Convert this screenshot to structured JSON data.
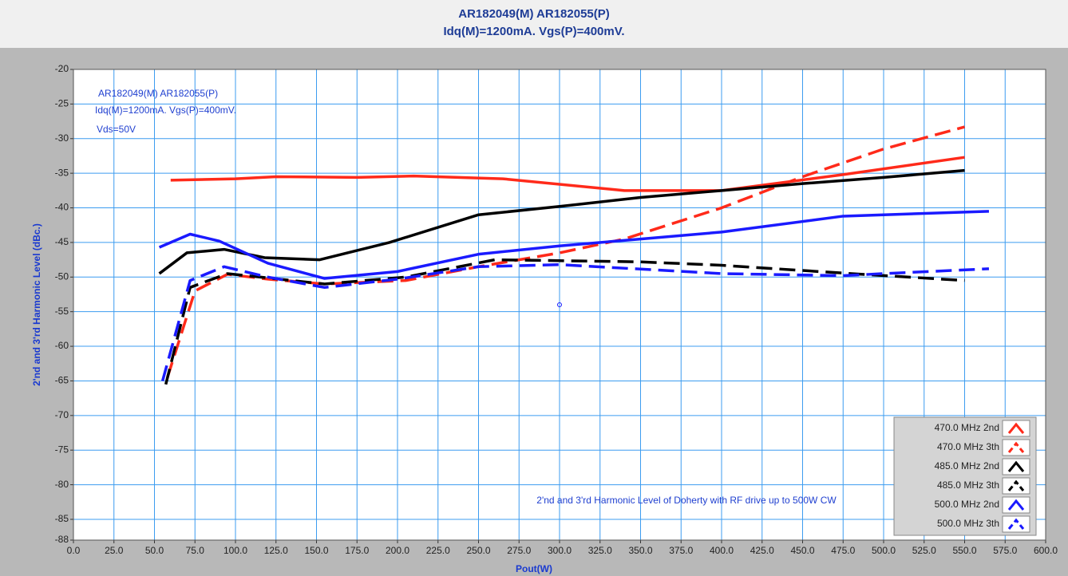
{
  "chart_data": {
    "type": "line",
    "title": [
      "AR182049(M) AR182055(P)",
      "Idq(M)=1200mA. Vgs(P)=400mV."
    ],
    "x_label": "Pout(W)",
    "y_label": "2'nd and 3'rd Harmonic Level (dBc.)",
    "annotations": [
      "AR182049(M) AR182055(P)",
      "Idq(M)=1200mA. Vgs(P)=400mV.",
      "Vds=50V",
      "2'nd and 3'rd Harmonic Level of Doherty with RF drive up to 500W CW"
    ],
    "cursor": {
      "x": 300,
      "y": -54
    },
    "xlim": [
      0,
      600
    ],
    "ylim": [
      -88,
      -20
    ],
    "xticks": [
      {
        "value": 0,
        "label": "0.0"
      },
      {
        "value": 25,
        "label": "25.0"
      },
      {
        "value": 50,
        "label": "50.0"
      },
      {
        "value": 75,
        "label": "75.0"
      },
      {
        "value": 100,
        "label": "100.0"
      },
      {
        "value": 125,
        "label": "125.0"
      },
      {
        "value": 150,
        "label": "150.0"
      },
      {
        "value": 175,
        "label": "175.0"
      },
      {
        "value": 200,
        "label": "200.0"
      },
      {
        "value": 225,
        "label": "225.0"
      },
      {
        "value": 250,
        "label": "250.0"
      },
      {
        "value": 275,
        "label": "275.0"
      },
      {
        "value": 300,
        "label": "300.0"
      },
      {
        "value": 325,
        "label": "325.0"
      },
      {
        "value": 350,
        "label": "350.0"
      },
      {
        "value": 375,
        "label": "375.0"
      },
      {
        "value": 400,
        "label": "400.0"
      },
      {
        "value": 425,
        "label": "425.0"
      },
      {
        "value": 450,
        "label": "450.0"
      },
      {
        "value": 475,
        "label": "475.0"
      },
      {
        "value": 500,
        "label": "500.0"
      },
      {
        "value": 525,
        "label": "525.0"
      },
      {
        "value": 550,
        "label": "550.0"
      },
      {
        "value": 575,
        "label": "575.0"
      },
      {
        "value": 600,
        "label": "600.0"
      }
    ],
    "yticks": [
      -20,
      -25,
      -30,
      -35,
      -40,
      -45,
      -50,
      -55,
      -60,
      -65,
      -70,
      -75,
      -80,
      -85,
      -88
    ],
    "grid": true,
    "legend": "bottom-right",
    "series": [
      {
        "name": "470.0 MHz 2nd",
        "color": "#ff2a1a",
        "dashed": false,
        "x": [
          60,
          100,
          125,
          175,
          210,
          265,
          340,
          400,
          475,
          550
        ],
        "values": [
          -36,
          -35.8,
          -35.5,
          -35.6,
          -35.4,
          -35.8,
          -37.5,
          -37.5,
          -35.2,
          -32.7
        ]
      },
      {
        "name": "470.0 MHz 3th",
        "color": "#ff2a1a",
        "dashed": true,
        "x": [
          58,
          75,
          95,
          120,
          155,
          205,
          250,
          300,
          340,
          400,
          450,
          500,
          550
        ],
        "values": [
          -64.5,
          -52,
          -49.6,
          -50.3,
          -51,
          -50.5,
          -48.5,
          -46.5,
          -44.5,
          -40,
          -35.5,
          -31.5,
          -28.3
        ]
      },
      {
        "name": "485.0 MHz 2nd",
        "color": "#000000",
        "dashed": false,
        "x": [
          53,
          70,
          93,
          118,
          152,
          195,
          250,
          300,
          350,
          400,
          450,
          500,
          550
        ],
        "values": [
          -49.5,
          -46.5,
          -46,
          -47.2,
          -47.5,
          -45,
          -41,
          -39.8,
          -38.5,
          -37.5,
          -36.5,
          -35.6,
          -34.6
        ]
      },
      {
        "name": "485.0 MHz 3th",
        "color": "#000000",
        "dashed": true,
        "x": [
          57,
          72,
          95,
          155,
          205,
          260,
          350,
          400,
          480,
          550
        ],
        "values": [
          -65.5,
          -51.5,
          -49.5,
          -51,
          -50,
          -47.5,
          -47.8,
          -48.3,
          -49.5,
          -50.5
        ]
      },
      {
        "name": "500.0 MHz 2nd",
        "color": "#1a1aff",
        "dashed": false,
        "x": [
          53,
          72,
          90,
          120,
          155,
          200,
          250,
          300,
          350,
          400,
          475,
          565
        ],
        "values": [
          -45.7,
          -43.8,
          -44.8,
          -48,
          -50.2,
          -49.2,
          -46.7,
          -45.5,
          -44.5,
          -43.5,
          -41.2,
          -40.5
        ]
      },
      {
        "name": "500.0 MHz 3th",
        "color": "#1a1aff",
        "dashed": true,
        "x": [
          55,
          72,
          93,
          120,
          155,
          200,
          250,
          300,
          400,
          475,
          500,
          565
        ],
        "values": [
          -65,
          -50.5,
          -48.5,
          -50,
          -51.5,
          -50.3,
          -48.5,
          -48.2,
          -49.5,
          -49.8,
          -49.5,
          -48.8
        ]
      }
    ]
  }
}
